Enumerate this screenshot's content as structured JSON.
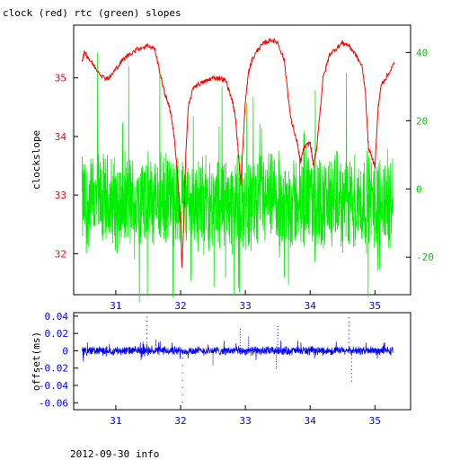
{
  "title": "clock (red) rtc (green) slopes",
  "footer": "2012-09-30 info",
  "colors": {
    "clock": "#ff0000",
    "rtc": "#00ee00",
    "offset": "#0000ff",
    "axis": "#000000"
  },
  "chart_data": [
    {
      "type": "line",
      "title": "clock (red) rtc (green) slopes",
      "xlim": [
        30.35,
        35.55
      ],
      "x_ticks": [
        "31",
        "32",
        "33",
        "34",
        "35"
      ],
      "ylabel": "clockslope",
      "ylim": [
        31.3,
        35.9
      ],
      "y_ticks": [
        "32",
        "33",
        "34",
        "35"
      ],
      "y2lim": [
        -31,
        48
      ],
      "y2_ticks": [
        "-20",
        "0",
        "20",
        "40"
      ],
      "grid": false,
      "series": [
        {
          "color": "#ff0000",
          "axis": "left",
          "x": [
            30.48,
            30.52,
            30.6,
            30.7,
            30.82,
            30.9,
            31.0,
            31.1,
            31.2,
            31.35,
            31.5,
            31.6,
            31.68,
            31.75,
            31.8,
            31.85,
            31.9,
            31.95,
            32.0,
            32.02,
            32.05,
            32.08,
            32.12,
            32.2,
            32.3,
            32.4,
            32.5,
            32.6,
            32.7,
            32.8,
            32.85,
            32.9,
            32.93,
            33.0,
            33.05,
            33.1,
            33.2,
            33.3,
            33.4,
            33.5,
            33.6,
            33.7,
            33.8,
            33.85,
            33.9,
            34.0,
            34.05,
            34.1,
            34.2,
            34.3,
            34.4,
            34.5,
            34.6,
            34.7,
            34.8,
            34.85,
            34.9,
            35.0,
            35.05,
            35.1,
            35.2,
            35.3
          ],
          "y": [
            35.3,
            35.45,
            35.3,
            35.15,
            35.0,
            35.0,
            35.15,
            35.3,
            35.4,
            35.5,
            35.55,
            35.5,
            35.1,
            34.75,
            34.6,
            34.4,
            34.0,
            33.4,
            32.5,
            31.8,
            32.5,
            33.7,
            34.5,
            34.85,
            34.9,
            34.95,
            35.0,
            35.0,
            34.95,
            34.6,
            34.3,
            33.6,
            33.2,
            34.6,
            35.1,
            35.3,
            35.5,
            35.6,
            35.65,
            35.6,
            35.3,
            34.3,
            33.9,
            33.55,
            33.8,
            33.9,
            33.5,
            33.8,
            35.0,
            35.4,
            35.5,
            35.6,
            35.55,
            35.4,
            35.2,
            34.8,
            33.8,
            33.5,
            34.5,
            34.9,
            35.05,
            35.25
          ]
        },
        {
          "color": "#00ee00",
          "axis": "right",
          "x_range": [
            30.48,
            35.28
          ],
          "center": -4,
          "typical_range": [
            -15,
            12
          ],
          "peaks": [
            40,
            36,
            35,
            -27,
            30,
            27,
            -26,
            29,
            34,
            -24
          ]
        }
      ]
    },
    {
      "type": "scatter",
      "xlim": [
        30.35,
        35.55
      ],
      "x_ticks": [
        "31",
        "32",
        "33",
        "34",
        "35"
      ],
      "ylabel": "offset(ms)",
      "ylim": [
        -0.068,
        0.044
      ],
      "y_ticks": [
        "0.04",
        "0.02",
        "0",
        "-0.02",
        "-0.04",
        "-0.06"
      ],
      "grid": false,
      "series": [
        {
          "color": "#0000ff",
          "x_range": [
            30.48,
            35.28
          ],
          "center": 0.0,
          "typical_range": [
            -0.005,
            0.005
          ],
          "outliers": [
            {
              "x": 31.48,
              "y": 0.039
            },
            {
              "x": 32.03,
              "y": -0.068
            },
            {
              "x": 32.92,
              "y": 0.025
            },
            {
              "x": 33.05,
              "y": 0.016
            },
            {
              "x": 33.5,
              "y": 0.028
            },
            {
              "x": 33.48,
              "y": -0.02
            },
            {
              "x": 34.6,
              "y": 0.038
            },
            {
              "x": 34.64,
              "y": -0.035
            },
            {
              "x": 32.5,
              "y": -0.016
            },
            {
              "x": 31.62,
              "y": 0.012
            },
            {
              "x": 30.5,
              "y": -0.012
            }
          ]
        }
      ]
    }
  ]
}
